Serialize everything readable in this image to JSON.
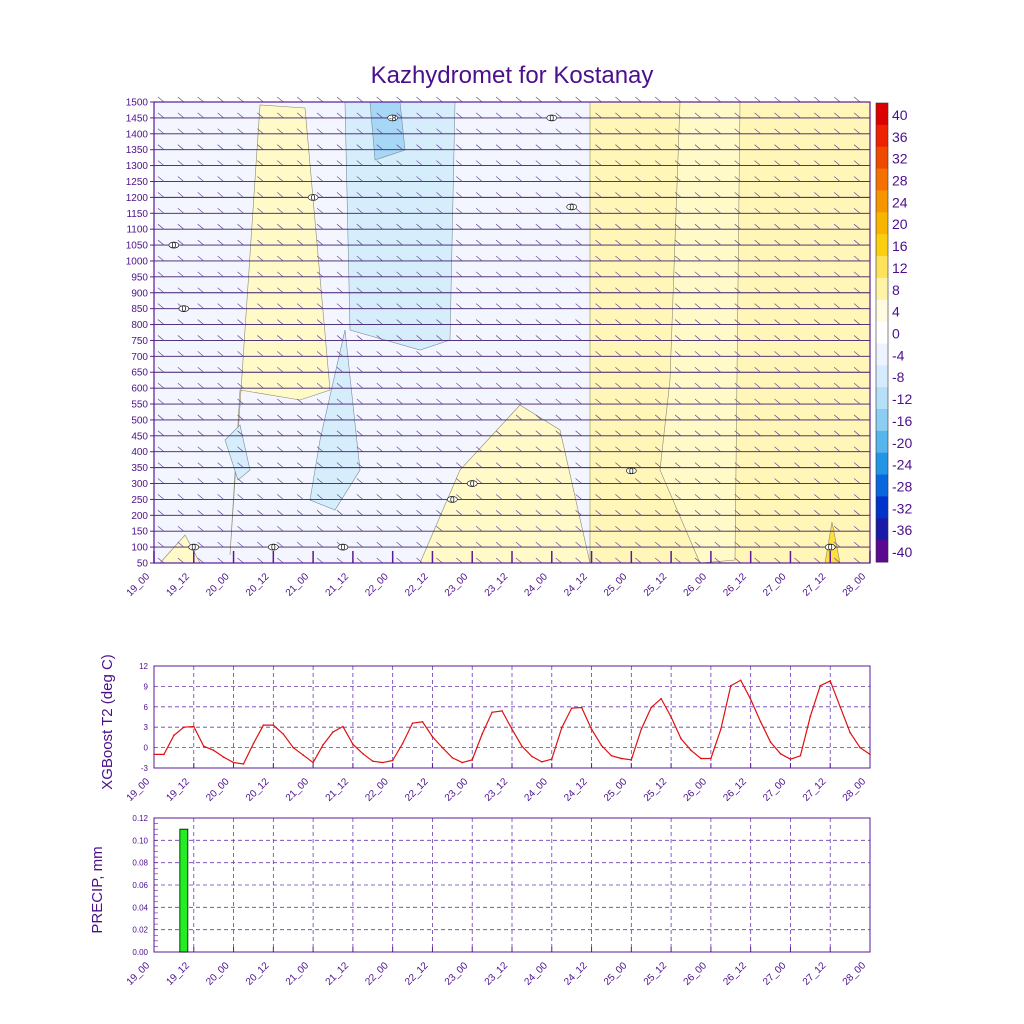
{
  "title": "Kazhydromet for Kostanay",
  "x_tick_labels": [
    "19_00",
    "19_12",
    "20_00",
    "20_12",
    "21_00",
    "21_12",
    "22_00",
    "22_12",
    "23_00",
    "23_12",
    "24_00",
    "24_12",
    "25_00",
    "25_12",
    "26_00",
    "26_12",
    "27_00",
    "27_12",
    "28_00"
  ],
  "colors": {
    "frame": "#5a1a9a",
    "text": "#4b0f8c",
    "line": "#e01010",
    "bar": "#22ee22",
    "grid": "#6a3ab0"
  },
  "chart_data": [
    {
      "type": "heatmap",
      "title": "Kazhydromet for Kostanay",
      "y_tick_labels": [
        "1500",
        "1450",
        "1400",
        "1350",
        "1300",
        "1250",
        "1200",
        "1150",
        "1100",
        "1050",
        "1000",
        "950",
        "900",
        "850",
        "800",
        "750",
        "700",
        "650",
        "600",
        "550",
        "500",
        "450",
        "400",
        "350",
        "300",
        "250",
        "200",
        "150",
        "100",
        "50"
      ],
      "ylim": [
        50,
        1500
      ],
      "colorbar": {
        "labels": [
          "40",
          "36",
          "32",
          "28",
          "24",
          "20",
          "16",
          "12",
          "8",
          "4",
          "0",
          "-4",
          "-8",
          "-12",
          "-16",
          "-20",
          "-24",
          "-28",
          "-32",
          "-36",
          "-40"
        ],
        "colors": [
          "#dd0000",
          "#ee2200",
          "#f04a00",
          "#f57000",
          "#f79500",
          "#f9b400",
          "#fbcf10",
          "#fde25a",
          "#fff3a6",
          "#fffbe0",
          "#ffffff",
          "#eef4ff",
          "#d4ecfd",
          "#b6dff8",
          "#8bcdf3",
          "#55b5ec",
          "#2196e6",
          "#0a66dd",
          "#0033cc",
          "#1a1aa8",
          "#5a0a90"
        ]
      },
      "contour_labels": [
        {
          "text": "0",
          "time": "19_06",
          "level": 1050
        },
        {
          "text": "0",
          "time": "19_09",
          "level": 850
        },
        {
          "text": "0",
          "time": "19_12",
          "level": 100
        },
        {
          "text": "-8",
          "time": "22_00",
          "level": 1450
        },
        {
          "text": "0",
          "time": "21_00",
          "level": 1200
        },
        {
          "text": "0",
          "time": "20_12",
          "level": 100
        },
        {
          "text": "0",
          "time": "21_09",
          "level": 100
        },
        {
          "text": "0",
          "time": "22_18",
          "level": 250
        },
        {
          "text": "0",
          "time": "23_00",
          "level": 300
        },
        {
          "text": "0",
          "time": "24_00",
          "level": 1450
        },
        {
          "text": "0",
          "time": "24_06",
          "level": 1170
        },
        {
          "text": "0",
          "time": "25_00",
          "level": 340
        },
        {
          "text": "0",
          "time": "27_12",
          "level": 100
        }
      ]
    },
    {
      "type": "line",
      "ylabel": "XGBoost T2 (deg C)",
      "y_tick_labels": [
        "12",
        "9",
        "6",
        "3",
        "0",
        "-3"
      ],
      "ylim": [
        -3,
        12
      ],
      "x_hours": [
        0,
        3,
        6,
        9,
        12,
        15,
        18,
        21,
        24,
        27,
        30,
        33,
        36,
        39,
        42,
        45,
        48,
        51,
        54,
        57,
        60,
        63,
        66,
        69,
        72,
        75,
        78,
        81,
        84,
        87,
        90,
        93,
        96,
        99,
        102,
        105,
        108,
        111,
        114,
        117,
        120,
        123,
        126,
        129,
        132,
        135,
        138,
        141,
        144,
        147,
        150,
        153,
        156,
        159,
        162,
        165,
        168,
        171,
        174,
        177,
        180,
        183,
        186,
        189,
        192,
        195,
        198,
        201,
        204,
        207,
        210,
        213,
        216
      ],
      "series": [
        {
          "values": [
            -1.0,
            -1.0,
            1.8,
            3.0,
            3.1,
            0.2,
            -0.4,
            -1.4,
            -2.2,
            -2.4,
            0.6,
            3.3,
            3.3,
            2.0,
            0.0,
            -1.1,
            -2.2,
            0.4,
            2.3,
            3.1,
            0.5,
            -0.9,
            -2.0,
            -2.2,
            -1.9,
            0.6,
            3.6,
            3.8,
            1.6,
            0.0,
            -1.5,
            -2.2,
            -1.8,
            2.0,
            5.2,
            5.4,
            2.7,
            0.2,
            -1.3,
            -2.1,
            -1.7,
            2.9,
            5.8,
            5.9,
            2.7,
            0.3,
            -1.2,
            -1.6,
            -1.8,
            2.7,
            5.9,
            7.2,
            4.5,
            1.3,
            -0.4,
            -1.6,
            -1.6,
            2.7,
            9.1,
            9.9,
            7.1,
            3.8,
            0.8,
            -0.9,
            -1.7,
            -1.2,
            4.6,
            9.1,
            9.8,
            6.0,
            2.2,
            0.0,
            -1.0
          ]
        }
      ]
    },
    {
      "type": "bar",
      "ylabel": "PRECIP, mm",
      "y_tick_labels": [
        "0.12",
        "0.10",
        "0.08",
        "0.06",
        "0.04",
        "0.02",
        "0.00"
      ],
      "ylim": [
        0,
        0.12
      ],
      "bars": [
        {
          "hour": 9,
          "value": 0.11
        }
      ]
    }
  ]
}
